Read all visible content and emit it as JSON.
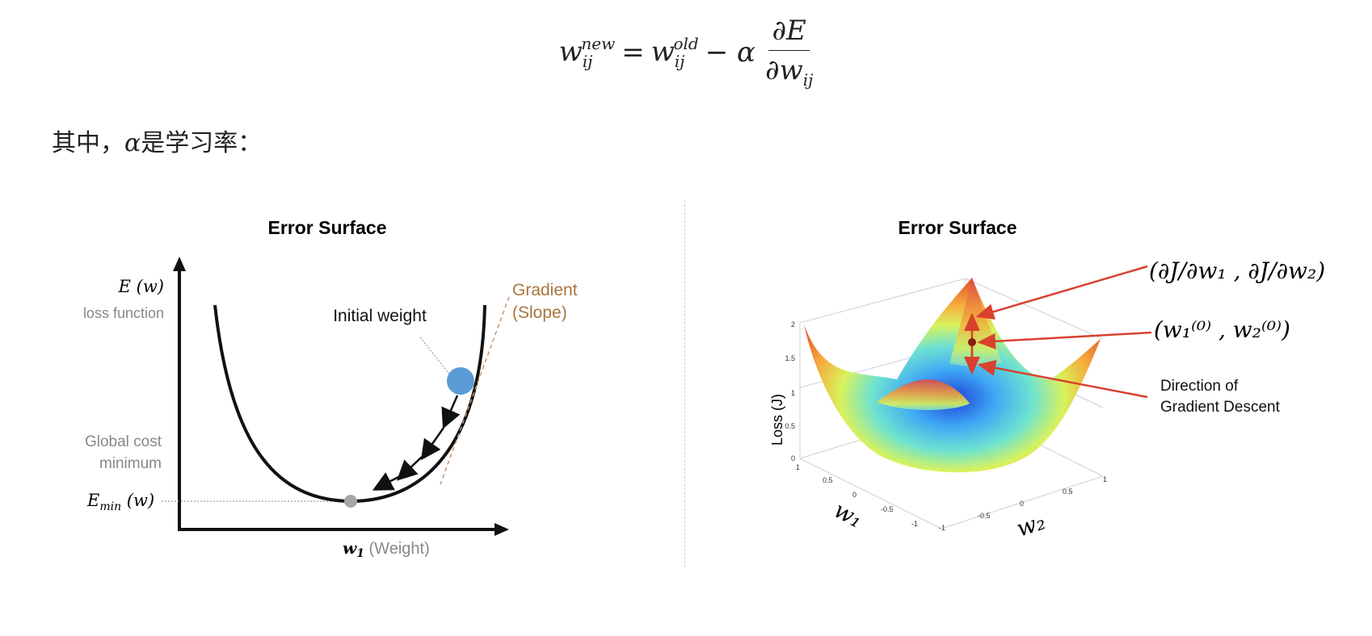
{
  "formula": {
    "lhs_base": "w",
    "lhs_sup": "new",
    "lhs_sub": "ij",
    "equals": "=",
    "rhs_base": "w",
    "rhs_sup": "old",
    "rhs_sub": "ij",
    "minus": "− α",
    "frac_num": "∂E",
    "frac_den": "∂w",
    "frac_den_sub": "ij"
  },
  "intro": {
    "prefix": "其中，",
    "symbol": "α",
    "suffix": "是学习率："
  },
  "left_diagram": {
    "title": "Error Surface",
    "y_axis_label": "E (w)",
    "y_axis_sublabel": "loss function",
    "initial_weight_label": "Initial weight",
    "gradient_label_1": "Gradient",
    "gradient_label_2": "(Slope)",
    "global_min_label_1": "Global cost",
    "global_min_label_2": "minimum",
    "emin_label": "E",
    "emin_sub": "min",
    "emin_tail": " (w)",
    "x_axis_label": "w",
    "x_axis_sub": "1",
    "x_axis_tail": " (Weight)",
    "colors": {
      "ball": "#5b9bd5",
      "min_point": "#a6a6a6",
      "tangent": "#c8926b"
    }
  },
  "right_diagram": {
    "title": "Error Surface",
    "z_axis_label": "Loss (J)",
    "x_axis_label": "w₁",
    "y_axis_label": "w₂",
    "gradient_vector": "(∂J/∂w₁ , ∂J/∂w₂)",
    "initial_point": "(w₁⁽⁰⁾ , w₂⁽⁰⁾)",
    "direction_label_1": "Direction of",
    "direction_label_2": "Gradient Descent",
    "z_ticks": [
      "0",
      "0.5",
      "1",
      "1.5",
      "2"
    ],
    "w1_ticks": [
      "1",
      "0.5",
      "0",
      "-0.5",
      "-1"
    ],
    "w2_ticks": [
      "-1",
      "-0.5",
      "0",
      "0.5",
      "1"
    ],
    "colors": {
      "annotation": "#d9412f"
    }
  }
}
